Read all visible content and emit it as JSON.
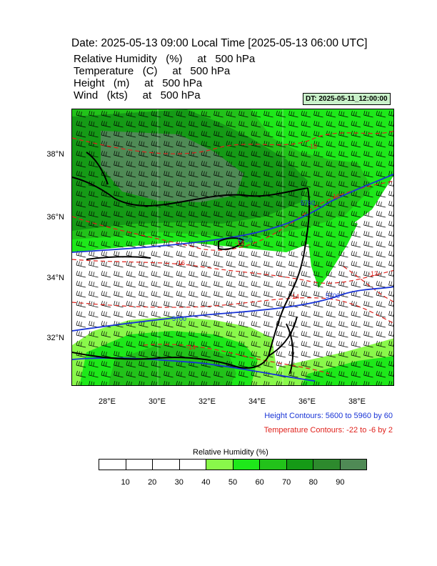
{
  "header": {
    "title": "Date: 2025-05-13  09:00 Local Time [2025-05-13  06:00 UTC]",
    "variables": [
      "Relative Humidity   (%)     at   500 hPa",
      "Temperature   (C)     at   500 hPa",
      "Height   (m)     at   500 hPa",
      "Wind   (kts)     at   500 hPa"
    ],
    "dt_badge": "DT: 2025-05-11_12:00:00"
  },
  "map": {
    "lat_labels": [
      "38°N",
      "36°N",
      "34°N",
      "32°N"
    ],
    "lon_labels": [
      "28°E",
      "30°E",
      "32°E",
      "34°E",
      "36°E",
      "38°E"
    ],
    "height_labels": [
      "5760",
      "5760",
      "5700",
      "5700"
    ],
    "temp_labels": [
      "-18",
      "-16",
      "-16",
      "-14",
      "-14",
      "-12",
      "-14"
    ],
    "colors": {
      "height_contour": "#1a35d6",
      "temp_contour": "#e0221c",
      "coastline": "#000000",
      "rh_40_50": "#89f84a",
      "rh_50_60": "#1ee81a",
      "rh_60_70": "#22c21a",
      "rh_70_80": "#159a16",
      "rh_80_90": "#2d8a2d",
      "rh_90_plus": "#4f8a55"
    }
  },
  "legend": {
    "height_contours": "Height Contours: 5600 to 5960 by 60",
    "temp_contours": "Temperature Contours: -22 to -6 by 2"
  },
  "colorbar": {
    "title": "Relative Humidity   (%)",
    "ticks": [
      "10",
      "20",
      "30",
      "40",
      "50",
      "60",
      "70",
      "80",
      "90"
    ],
    "colors": [
      "#ffffff",
      "#ffffff",
      "#ffffff",
      "#ffffff",
      "#89f84a",
      "#1ee81a",
      "#22c21a",
      "#159a16",
      "#2d8a2d",
      "#4f8a55"
    ]
  }
}
